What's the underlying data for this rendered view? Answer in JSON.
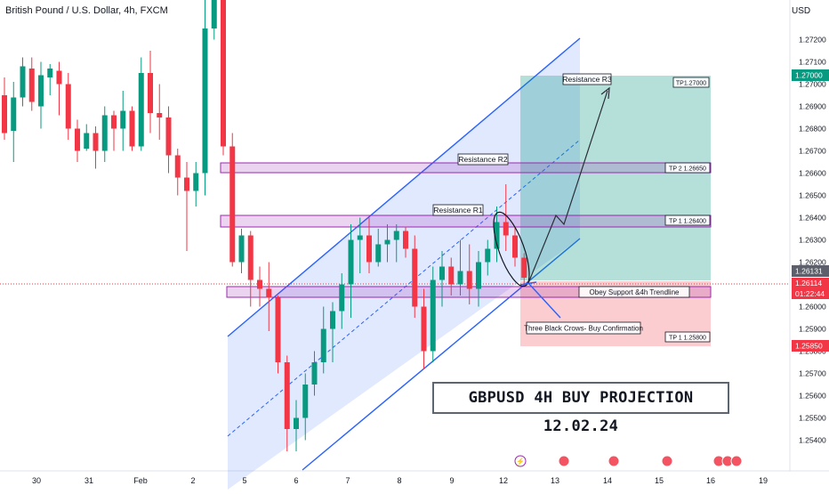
{
  "header": {
    "title": "British Pound / U.S. Dollar, 4h, FXCM",
    "currency": "USD"
  },
  "chart_data": {
    "type": "candlestick",
    "symbol": "GBPUSD",
    "timeframe": "4h",
    "ylim": [
      1.2535,
      1.2725
    ],
    "y_ticks": [
      "1.27200",
      "1.27100",
      "1.27000",
      "1.26900",
      "1.26800",
      "1.26700",
      "1.26600",
      "1.26500",
      "1.26400",
      "1.26300",
      "1.26200",
      "1.26100",
      "1.26000",
      "1.25900",
      "1.25800",
      "1.25700",
      "1.25600",
      "1.25500",
      "1.25400"
    ],
    "x_ticks": [
      "30",
      "31",
      "Feb",
      "2",
      "5",
      "6",
      "7",
      "8",
      "9",
      "12",
      "13",
      "14",
      "15",
      "16",
      "19"
    ],
    "price_labels": {
      "tp_top": "1.27000",
      "current": "1.26131",
      "last": "1.26114",
      "countdown": "01:22:44",
      "stop": "1.25850"
    },
    "zones": {
      "resistance_r3": "Resistance R3",
      "resistance_r2": "Resistance R2",
      "resistance_r1": "Resistance R1",
      "tp_main": "TP1.27000",
      "tp2": "TP 2  1.26650",
      "tp1": "TP 1  1.26400",
      "support": "Obey Support &4h Trendline",
      "sl": "TP 1  1.25800"
    },
    "annotation": "Three Black Crows- Buy Confirmation",
    "projection_title": "GBPUSD 4H BUY PROJECTION  12.02.24",
    "colors": {
      "up": "#089981",
      "down": "#f23645",
      "channel": "#2962ff",
      "zone": "#9c27b0",
      "target": "#089981",
      "stop": "#f23645"
    },
    "candles": [
      [
        1.2695,
        1.2703,
        1.2675,
        1.2678
      ],
      [
        1.2679,
        1.2701,
        1.2665,
        1.2694
      ],
      [
        1.2694,
        1.2712,
        1.269,
        1.2708
      ],
      [
        1.2707,
        1.2712,
        1.2688,
        1.2692
      ],
      [
        1.269,
        1.271,
        1.268,
        1.2704
      ],
      [
        1.2703,
        1.2709,
        1.2695,
        1.2707
      ],
      [
        1.2706,
        1.271,
        1.2686,
        1.27
      ],
      [
        1.27,
        1.2705,
        1.2675,
        1.268
      ],
      [
        1.268,
        1.2684,
        1.2665,
        1.267
      ],
      [
        1.2671,
        1.2682,
        1.267,
        1.2678
      ],
      [
        1.2678,
        1.2681,
        1.2662,
        1.267
      ],
      [
        1.267,
        1.269,
        1.2665,
        1.2686
      ],
      [
        1.2686,
        1.2688,
        1.267,
        1.268
      ],
      [
        1.268,
        1.2697,
        1.267,
        1.2688
      ],
      [
        1.2688,
        1.269,
        1.267,
        1.2672
      ],
      [
        1.2672,
        1.2712,
        1.267,
        1.2705
      ],
      [
        1.2705,
        1.2715,
        1.2678,
        1.2687
      ],
      [
        1.2687,
        1.27,
        1.2675,
        1.2685
      ],
      [
        1.2685,
        1.269,
        1.266,
        1.2668
      ],
      [
        1.2668,
        1.2671,
        1.265,
        1.2658
      ],
      [
        1.2658,
        1.2665,
        1.2625,
        1.2652
      ],
      [
        1.2652,
        1.2665,
        1.2645,
        1.266
      ],
      [
        1.266,
        1.2745,
        1.265,
        1.2725
      ],
      [
        1.2725,
        1.2745,
        1.272,
        1.274
      ],
      [
        1.274,
        1.2745,
        1.2668,
        1.2672
      ],
      [
        1.2672,
        1.2678,
        1.2618,
        1.262
      ],
      [
        1.262,
        1.2635,
        1.2615,
        1.2632
      ],
      [
        1.2632,
        1.2634,
        1.26,
        1.2612
      ],
      [
        1.2612,
        1.2618,
        1.26,
        1.2608
      ],
      [
        1.2608,
        1.262,
        1.2589,
        1.2604
      ],
      [
        1.2604,
        1.2605,
        1.257,
        1.2575
      ],
      [
        1.2575,
        1.2578,
        1.2535,
        1.2545
      ],
      [
        1.2545,
        1.2558,
        1.2535,
        1.255
      ],
      [
        1.255,
        1.257,
        1.254,
        1.2565
      ],
      [
        1.2565,
        1.258,
        1.256,
        1.2575
      ],
      [
        1.2575,
        1.26,
        1.257,
        1.259
      ],
      [
        1.259,
        1.2602,
        1.2575,
        1.2598
      ],
      [
        1.2598,
        1.2615,
        1.259,
        1.261
      ],
      [
        1.261,
        1.2637,
        1.2595,
        1.263
      ],
      [
        1.263,
        1.264,
        1.2615,
        1.2632
      ],
      [
        1.2632,
        1.264,
        1.2615,
        1.262
      ],
      [
        1.262,
        1.2635,
        1.2618,
        1.2628
      ],
      [
        1.2628,
        1.2637,
        1.262,
        1.263
      ],
      [
        1.263,
        1.2637,
        1.262,
        1.2634
      ],
      [
        1.2634,
        1.2636,
        1.2622,
        1.2626
      ],
      [
        1.2626,
        1.2632,
        1.2595,
        1.26
      ],
      [
        1.26,
        1.2608,
        1.2572,
        1.258
      ],
      [
        1.258,
        1.2618,
        1.2575,
        1.2612
      ],
      [
        1.2612,
        1.2625,
        1.26,
        1.2618
      ],
      [
        1.2618,
        1.2622,
        1.2605,
        1.261
      ],
      [
        1.261,
        1.263,
        1.2605,
        1.2616
      ],
      [
        1.2616,
        1.2628,
        1.2601,
        1.2608
      ],
      [
        1.2608,
        1.2625,
        1.26,
        1.262
      ],
      [
        1.262,
        1.263,
        1.2614,
        1.2626
      ],
      [
        1.2626,
        1.2645,
        1.262,
        1.2638
      ],
      [
        1.2638,
        1.2655,
        1.2625,
        1.2632
      ],
      [
        1.2632,
        1.2636,
        1.2618,
        1.2622
      ],
      [
        1.2622,
        1.2624,
        1.261,
        1.2613
      ]
    ]
  }
}
